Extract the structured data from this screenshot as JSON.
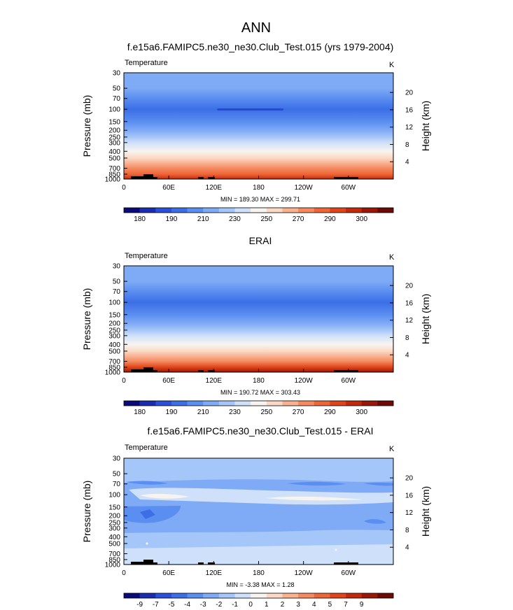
{
  "figure": {
    "title": "ANN"
  },
  "colorbar_colors": [
    "#0a0a7a",
    "#1a2db0",
    "#2b4fd8",
    "#3c6ee6",
    "#5a8ef0",
    "#7faaf5",
    "#a5c6f8",
    "#cfe0fa",
    "#f7f4f0",
    "#fbd8c4",
    "#f9b290",
    "#f58a60",
    "#ee6638",
    "#e0441a",
    "#c22a0c",
    "#9a1708",
    "#6e0a06"
  ],
  "terrain_color": "#000000",
  "chart_data": [
    {
      "type": "heatmap",
      "title": "f.e15a6.FAMIPC5.ne30_ne30.Club_Test.015 (yrs 1979-2004)",
      "left_label": "Temperature",
      "units": "K",
      "ylabel": "Pressure (mb)",
      "ylabel_right": "Height (km)",
      "y_ticks": [
        "30",
        "50",
        "70",
        "100",
        "150",
        "200",
        "250",
        "300",
        "400",
        "500",
        "700",
        "850",
        "1000"
      ],
      "y_ticks_right": [
        "20",
        "16",
        "12",
        "8",
        "4"
      ],
      "x_ticks": [
        "0",
        "60E",
        "120E",
        "180",
        "120W",
        "60W"
      ],
      "min_max": "MIN = 189.30  MAX = 299.71",
      "colorbar_labels": [
        "180",
        "190",
        "210",
        "230",
        "250",
        "270",
        "290",
        "300"
      ],
      "profile": [
        {
          "p": 30,
          "t": 215
        },
        {
          "p": 50,
          "t": 212
        },
        {
          "p": 70,
          "t": 205
        },
        {
          "p": 100,
          "t": 196
        },
        {
          "p": 150,
          "t": 204
        },
        {
          "p": 200,
          "t": 214
        },
        {
          "p": 250,
          "t": 224
        },
        {
          "p": 300,
          "t": 234
        },
        {
          "p": 400,
          "t": 248
        },
        {
          "p": 500,
          "t": 258
        },
        {
          "p": 700,
          "t": 275
        },
        {
          "p": 850,
          "t": 285
        },
        {
          "p": 1000,
          "t": 295
        }
      ]
    },
    {
      "type": "heatmap",
      "title": "ERAI",
      "left_label": "Temperature",
      "units": "K",
      "ylabel": "Pressure (mb)",
      "ylabel_right": "Height (km)",
      "y_ticks": [
        "30",
        "50",
        "70",
        "100",
        "150",
        "200",
        "250",
        "300",
        "400",
        "500",
        "700",
        "850",
        "1000"
      ],
      "y_ticks_right": [
        "20",
        "16",
        "12",
        "8",
        "4"
      ],
      "x_ticks": [
        "0",
        "60E",
        "120E",
        "180",
        "120W",
        "60W"
      ],
      "min_max": "MIN = 190.72  MAX = 303.43",
      "colorbar_labels": [
        "180",
        "190",
        "210",
        "230",
        "250",
        "270",
        "290",
        "300"
      ],
      "profile": [
        {
          "p": 30,
          "t": 216
        },
        {
          "p": 50,
          "t": 212
        },
        {
          "p": 70,
          "t": 205
        },
        {
          "p": 100,
          "t": 197
        },
        {
          "p": 150,
          "t": 205
        },
        {
          "p": 200,
          "t": 215
        },
        {
          "p": 250,
          "t": 225
        },
        {
          "p": 300,
          "t": 235
        },
        {
          "p": 400,
          "t": 249
        },
        {
          "p": 500,
          "t": 259
        },
        {
          "p": 700,
          "t": 276
        },
        {
          "p": 850,
          "t": 287
        },
        {
          "p": 1000,
          "t": 298
        }
      ]
    },
    {
      "type": "heatmap",
      "title": "f.e15a6.FAMIPC5.ne30_ne30.Club_Test.015 - ERAI",
      "left_label": "Temperature",
      "units": "K",
      "ylabel": "Pressure (mb)",
      "ylabel_right": "Height (km)",
      "y_ticks": [
        "30",
        "50",
        "70",
        "100",
        "150",
        "200",
        "250",
        "300",
        "400",
        "500",
        "700",
        "850",
        "1000"
      ],
      "y_ticks_right": [
        "20",
        "16",
        "12",
        "8",
        "4"
      ],
      "x_ticks": [
        "0",
        "60E",
        "120E",
        "180",
        "120W",
        "60W"
      ],
      "min_max": "MIN =  -3.38  MAX =   1.28",
      "colorbar_labels": [
        "-9",
        "-7",
        "-5",
        "-4",
        "-3",
        "-2",
        "-1",
        "0",
        "1",
        "2",
        "3",
        "4",
        "5",
        "7",
        "9"
      ]
    }
  ]
}
